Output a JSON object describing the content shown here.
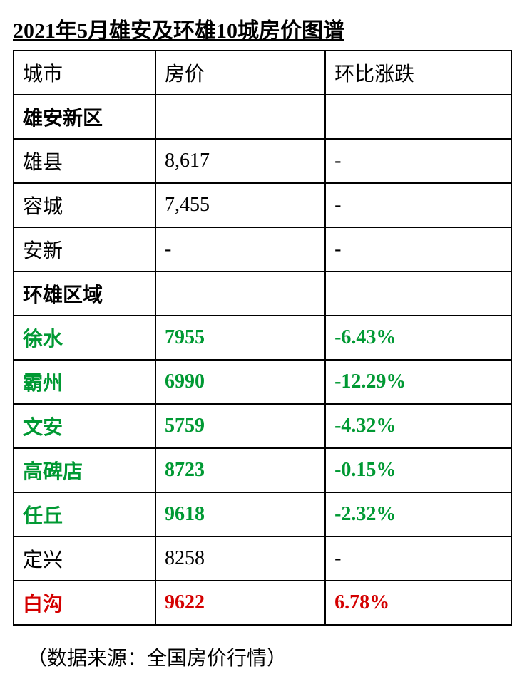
{
  "title": "2021年5月雄安及环雄10城房价图谱",
  "columns": {
    "city": "城市",
    "price": "房价",
    "change": "环比涨跌"
  },
  "colors": {
    "normal": "#000000",
    "down": "#009933",
    "up": "#d40000",
    "background": "#ffffff",
    "border": "#000000"
  },
  "fontsize": {
    "title": 30,
    "cell": 28,
    "footer": 28
  },
  "sections": [
    {
      "header": "雄安新区",
      "rows": [
        {
          "city": "雄县",
          "price": "8,617",
          "change": "-",
          "style": "normal"
        },
        {
          "city": "容城",
          "price": "7,455",
          "change": "-",
          "style": "normal"
        },
        {
          "city": "安新",
          "price": "-",
          "change": "-",
          "style": "normal"
        }
      ]
    },
    {
      "header": "环雄区域",
      "rows": [
        {
          "city": "徐水",
          "price": "7955",
          "change": "-6.43%",
          "style": "down"
        },
        {
          "city": "霸州",
          "price": "6990",
          "change": "-12.29%",
          "style": "down"
        },
        {
          "city": "文安",
          "price": "5759",
          "change": "-4.32%",
          "style": "down"
        },
        {
          "city": "高碑店",
          "price": "8723",
          "change": "-0.15%",
          "style": "down"
        },
        {
          "city": "任丘",
          "price": "9618",
          "change": "-2.32%",
          "style": "down"
        },
        {
          "city": "定兴",
          "price": "8258",
          "change": "-",
          "style": "normal"
        },
        {
          "city": "白沟",
          "price": "9622",
          "change": "6.78%",
          "style": "up"
        }
      ]
    }
  ],
  "footer": "（数据来源：全国房价行情）"
}
